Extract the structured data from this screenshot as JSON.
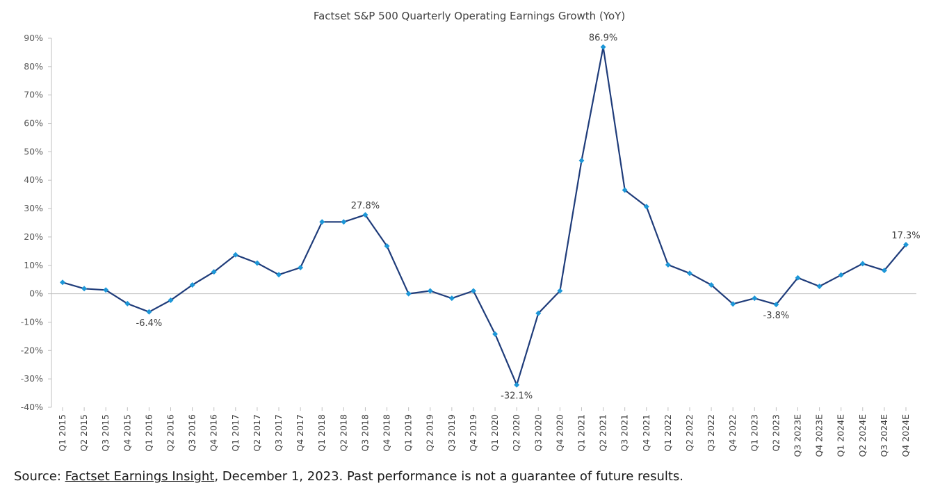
{
  "chart_data": {
    "type": "line",
    "title": "Factset S&P 500 Quarterly Operating Earnings Growth (YoY)",
    "xlabel": "",
    "ylabel": "",
    "ylim": [
      -40,
      90
    ],
    "yticks": [
      "90%",
      "80%",
      "70%",
      "60%",
      "50%",
      "40%",
      "30%",
      "20%",
      "10%",
      "0%",
      "-10%",
      "-20%",
      "-30%",
      "-40%"
    ],
    "ytick_values": [
      90,
      80,
      70,
      60,
      50,
      40,
      30,
      20,
      10,
      0,
      -10,
      -20,
      -30,
      -40
    ],
    "categories": [
      "Q1 2015",
      "Q2 2015",
      "Q3 2015",
      "Q4 2015",
      "Q1 2016",
      "Q2 2016",
      "Q3 2016",
      "Q4 2016",
      "Q1 2017",
      "Q2 2017",
      "Q3 2017",
      "Q4 2017",
      "Q1 2018",
      "Q2 2018",
      "Q3 2018",
      "Q4 2018",
      "Q1 2019",
      "Q2 2019",
      "Q3 2019",
      "Q4 2019",
      "Q1 2020",
      "Q2 2020",
      "Q3 2020",
      "Q4 2020",
      "Q1 2021",
      "Q2 2021",
      "Q3 2021",
      "Q4 2021",
      "Q1 2022",
      "Q2 2022",
      "Q3 2022",
      "Q4 2022",
      "Q1 2023",
      "Q2 2023",
      "Q3 2023E",
      "Q4 2023E",
      "Q1 2024E",
      "Q2 2024E",
      "Q3 2024E",
      "Q4 2024E"
    ],
    "series": [
      {
        "values": [
          4.0,
          1.8,
          1.3,
          -3.5,
          -6.4,
          -2.3,
          3.1,
          7.7,
          13.7,
          10.8,
          6.7,
          9.2,
          25.3,
          25.3,
          27.8,
          16.8,
          0.0,
          1.0,
          -1.6,
          1.0,
          -14.2,
          -32.1,
          -6.9,
          1.0,
          46.9,
          86.9,
          36.5,
          30.7,
          10.2,
          7.2,
          3.1,
          -3.6,
          -1.6,
          -3.8,
          5.6,
          2.6,
          6.6,
          10.6,
          8.2,
          17.3
        ],
        "color": "#1f3c7a",
        "marker_color": "#1d97d8"
      }
    ],
    "annotations": [
      {
        "index": 4,
        "text": "-6.4%",
        "position": "below"
      },
      {
        "index": 14,
        "text": "27.8%",
        "position": "above"
      },
      {
        "index": 21,
        "text": "-32.1%",
        "position": "below"
      },
      {
        "index": 25,
        "text": "86.9%",
        "position": "above"
      },
      {
        "index": 33,
        "text": "-3.8%",
        "position": "below"
      },
      {
        "index": 39,
        "text": "17.3%",
        "position": "above"
      }
    ],
    "grid": false,
    "legend": "none"
  },
  "source": {
    "prefix": "Source: ",
    "link_text": "Factset Earnings Insight",
    "suffix": ", December 1, 2023. Past performance is not a guarantee of future results."
  }
}
